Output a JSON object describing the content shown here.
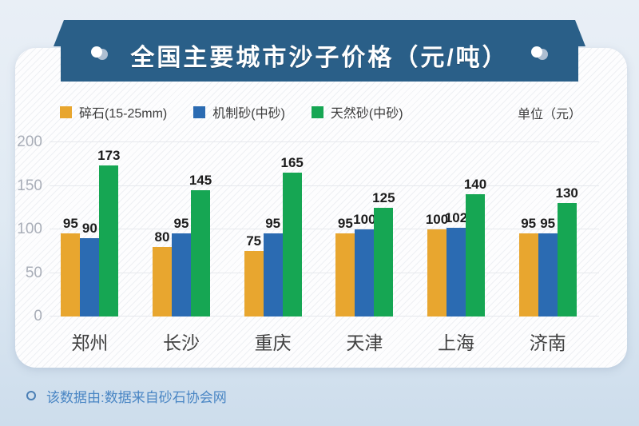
{
  "page": {
    "footer_note": "该数据由:数据来自砂石协会网"
  },
  "colors": {
    "banner_blue": "#2a5f88",
    "crushed_stone_orange": "#e8a62f",
    "machine_sand_blue": "#2b6bb2",
    "natural_sand_green": "#16a653",
    "panel_background": "#fdfdfe",
    "footer_text_blue": "#4a86c4"
  },
  "chart_data": {
    "type": "bar",
    "title": "全国主要城市沙子价格（元/吨）",
    "unit": "单位（元）",
    "categories": [
      "郑州",
      "长沙",
      "重庆",
      "天津",
      "上海",
      "济南"
    ],
    "series": [
      {
        "name": "碎石(15-25mm)",
        "color": "#e8a62f",
        "values": [
          95,
          80,
          75,
          95,
          100,
          95
        ]
      },
      {
        "name": "机制砂(中砂)",
        "color": "#2b6bb2",
        "values": [
          90,
          95,
          95,
          100,
          102,
          95
        ]
      },
      {
        "name": "天然砂(中砂)",
        "color": "#16a653",
        "values": [
          173,
          145,
          165,
          125,
          140,
          130
        ]
      }
    ],
    "ylim": [
      0,
      200
    ],
    "yticks": [
      0,
      50,
      100,
      150,
      200
    ],
    "grid": true,
    "legend_position": "top"
  }
}
